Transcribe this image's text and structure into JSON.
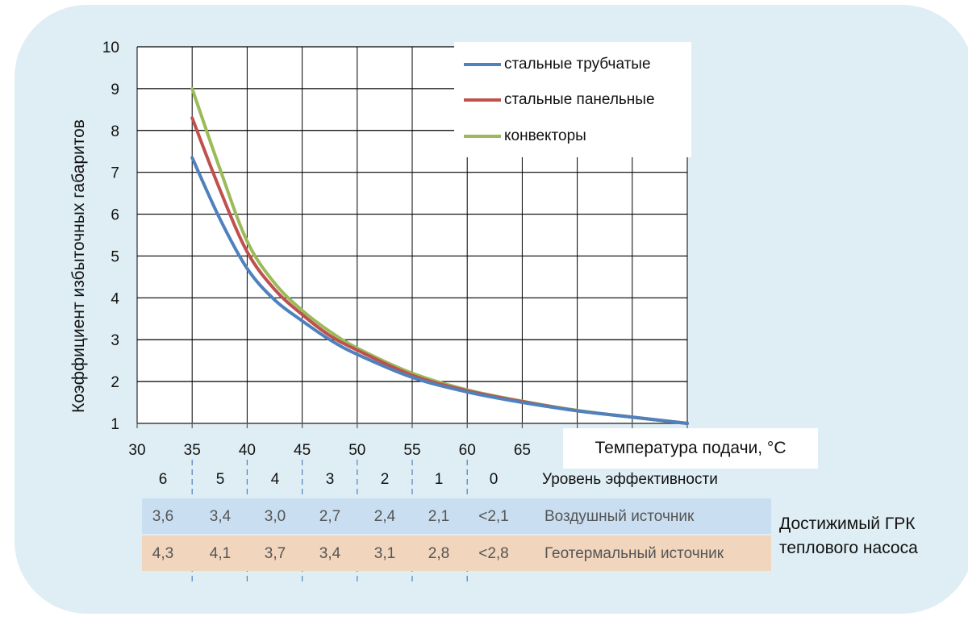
{
  "chart_data": {
    "type": "line",
    "xlabel": "Температура подачи, °C",
    "ylabel": "Коэффициент  избыточных габаритов",
    "xlim": [
      30,
      80
    ],
    "ylim": [
      1,
      10
    ],
    "x_ticks": [
      "30",
      "35",
      "40",
      "45",
      "50",
      "55",
      "60",
      "65"
    ],
    "y_ticks": [
      "1",
      "2",
      "3",
      "4",
      "5",
      "6",
      "7",
      "8",
      "9",
      "10"
    ],
    "grid": true,
    "legend_position": "top-right",
    "series": [
      {
        "name": "стальные трубчатые",
        "color": "#4f81bd",
        "x": [
          35,
          37.5,
          40,
          42.5,
          45,
          47.5,
          50,
          55,
          60,
          65,
          70,
          75,
          80
        ],
        "y": [
          7.35,
          5.9,
          4.7,
          3.95,
          3.45,
          3.0,
          2.65,
          2.1,
          1.75,
          1.5,
          1.3,
          1.15,
          1.0
        ]
      },
      {
        "name": "стальные панельные",
        "color": "#c0504d",
        "x": [
          35,
          37.5,
          40,
          42.5,
          45,
          47.5,
          50,
          55,
          60,
          65,
          70,
          75,
          80
        ],
        "y": [
          8.3,
          6.6,
          5.1,
          4.2,
          3.6,
          3.1,
          2.75,
          2.15,
          1.78,
          1.52,
          1.3,
          1.15,
          1.0
        ]
      },
      {
        "name": "конвекторы",
        "color": "#9bbb59",
        "x": [
          35,
          37.5,
          40,
          42.5,
          45,
          47.5,
          50,
          55,
          60,
          65,
          70,
          75,
          80
        ],
        "y": [
          9.0,
          7.1,
          5.35,
          4.35,
          3.7,
          3.2,
          2.8,
          2.2,
          1.8,
          1.53,
          1.31,
          1.15,
          1.0
        ]
      }
    ]
  },
  "table": {
    "levels": [
      "6",
      "5",
      "4",
      "3",
      "2",
      "1",
      "0"
    ],
    "levels_label": "Уровень эффективности",
    "air": [
      "3,6",
      "3,4",
      "3,0",
      "2,7",
      "2,4",
      "2,1",
      "<2,1"
    ],
    "air_label": "Воздушный источник",
    "air_color": "#c9def0",
    "geo": [
      "4,3",
      "4,1",
      "3,7",
      "3,4",
      "3,1",
      "2,8",
      "<2,8"
    ],
    "geo_label": "Геотермальный источник",
    "geo_color": "#f1d5bd",
    "side_label_1": "Достижимый ГРК",
    "side_label_2": "теплового насоса"
  }
}
